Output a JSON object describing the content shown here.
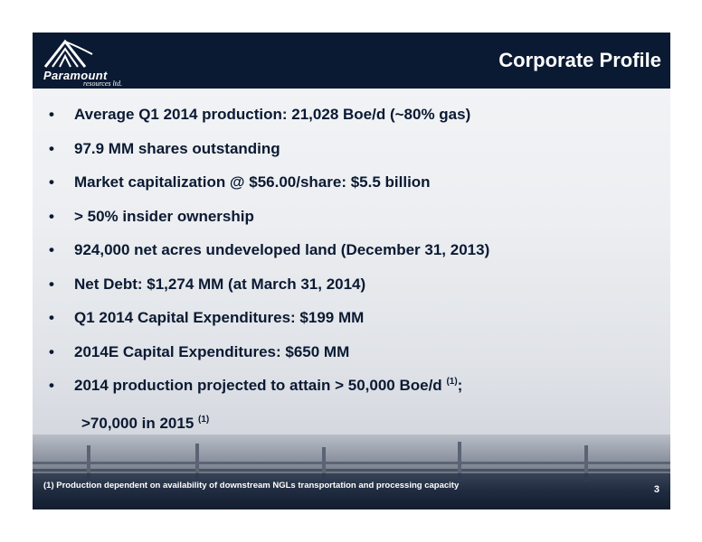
{
  "header": {
    "title": "Corporate Profile",
    "logo": {
      "name": "Paramount",
      "sub": "resources ltd."
    }
  },
  "bullets": [
    {
      "text": "Average Q1 2014 production: 21,028 Boe/d (~80% gas)"
    },
    {
      "text": "97.9 MM shares outstanding"
    },
    {
      "text": "Market capitalization @ $56.00/share: $5.5 billion"
    },
    {
      "text": "> 50% insider ownership"
    },
    {
      "text": "924,000 net acres undeveloped land (December 31, 2013)"
    },
    {
      "text": "Net Debt: $1,274 MM (at March 31, 2014)"
    },
    {
      "text": "Q1 2014 Capital Expenditures: $199 MM"
    },
    {
      "text": "2014E Capital Expenditures: $650 MM"
    },
    {
      "text": "2014  production projected to attain > 50,000 Boe/d",
      "sup": "(1)",
      "tail": ";"
    }
  ],
  "continuation": {
    "text": ">70,000 in 2015",
    "sup": "(1)"
  },
  "footer": {
    "footnote": "(1) Production dependent on availability of downstream NGLs transportation and processing capacity",
    "page_number": "3"
  },
  "colors": {
    "header_bg": "#0b1a33",
    "text": "#0b1a33"
  }
}
